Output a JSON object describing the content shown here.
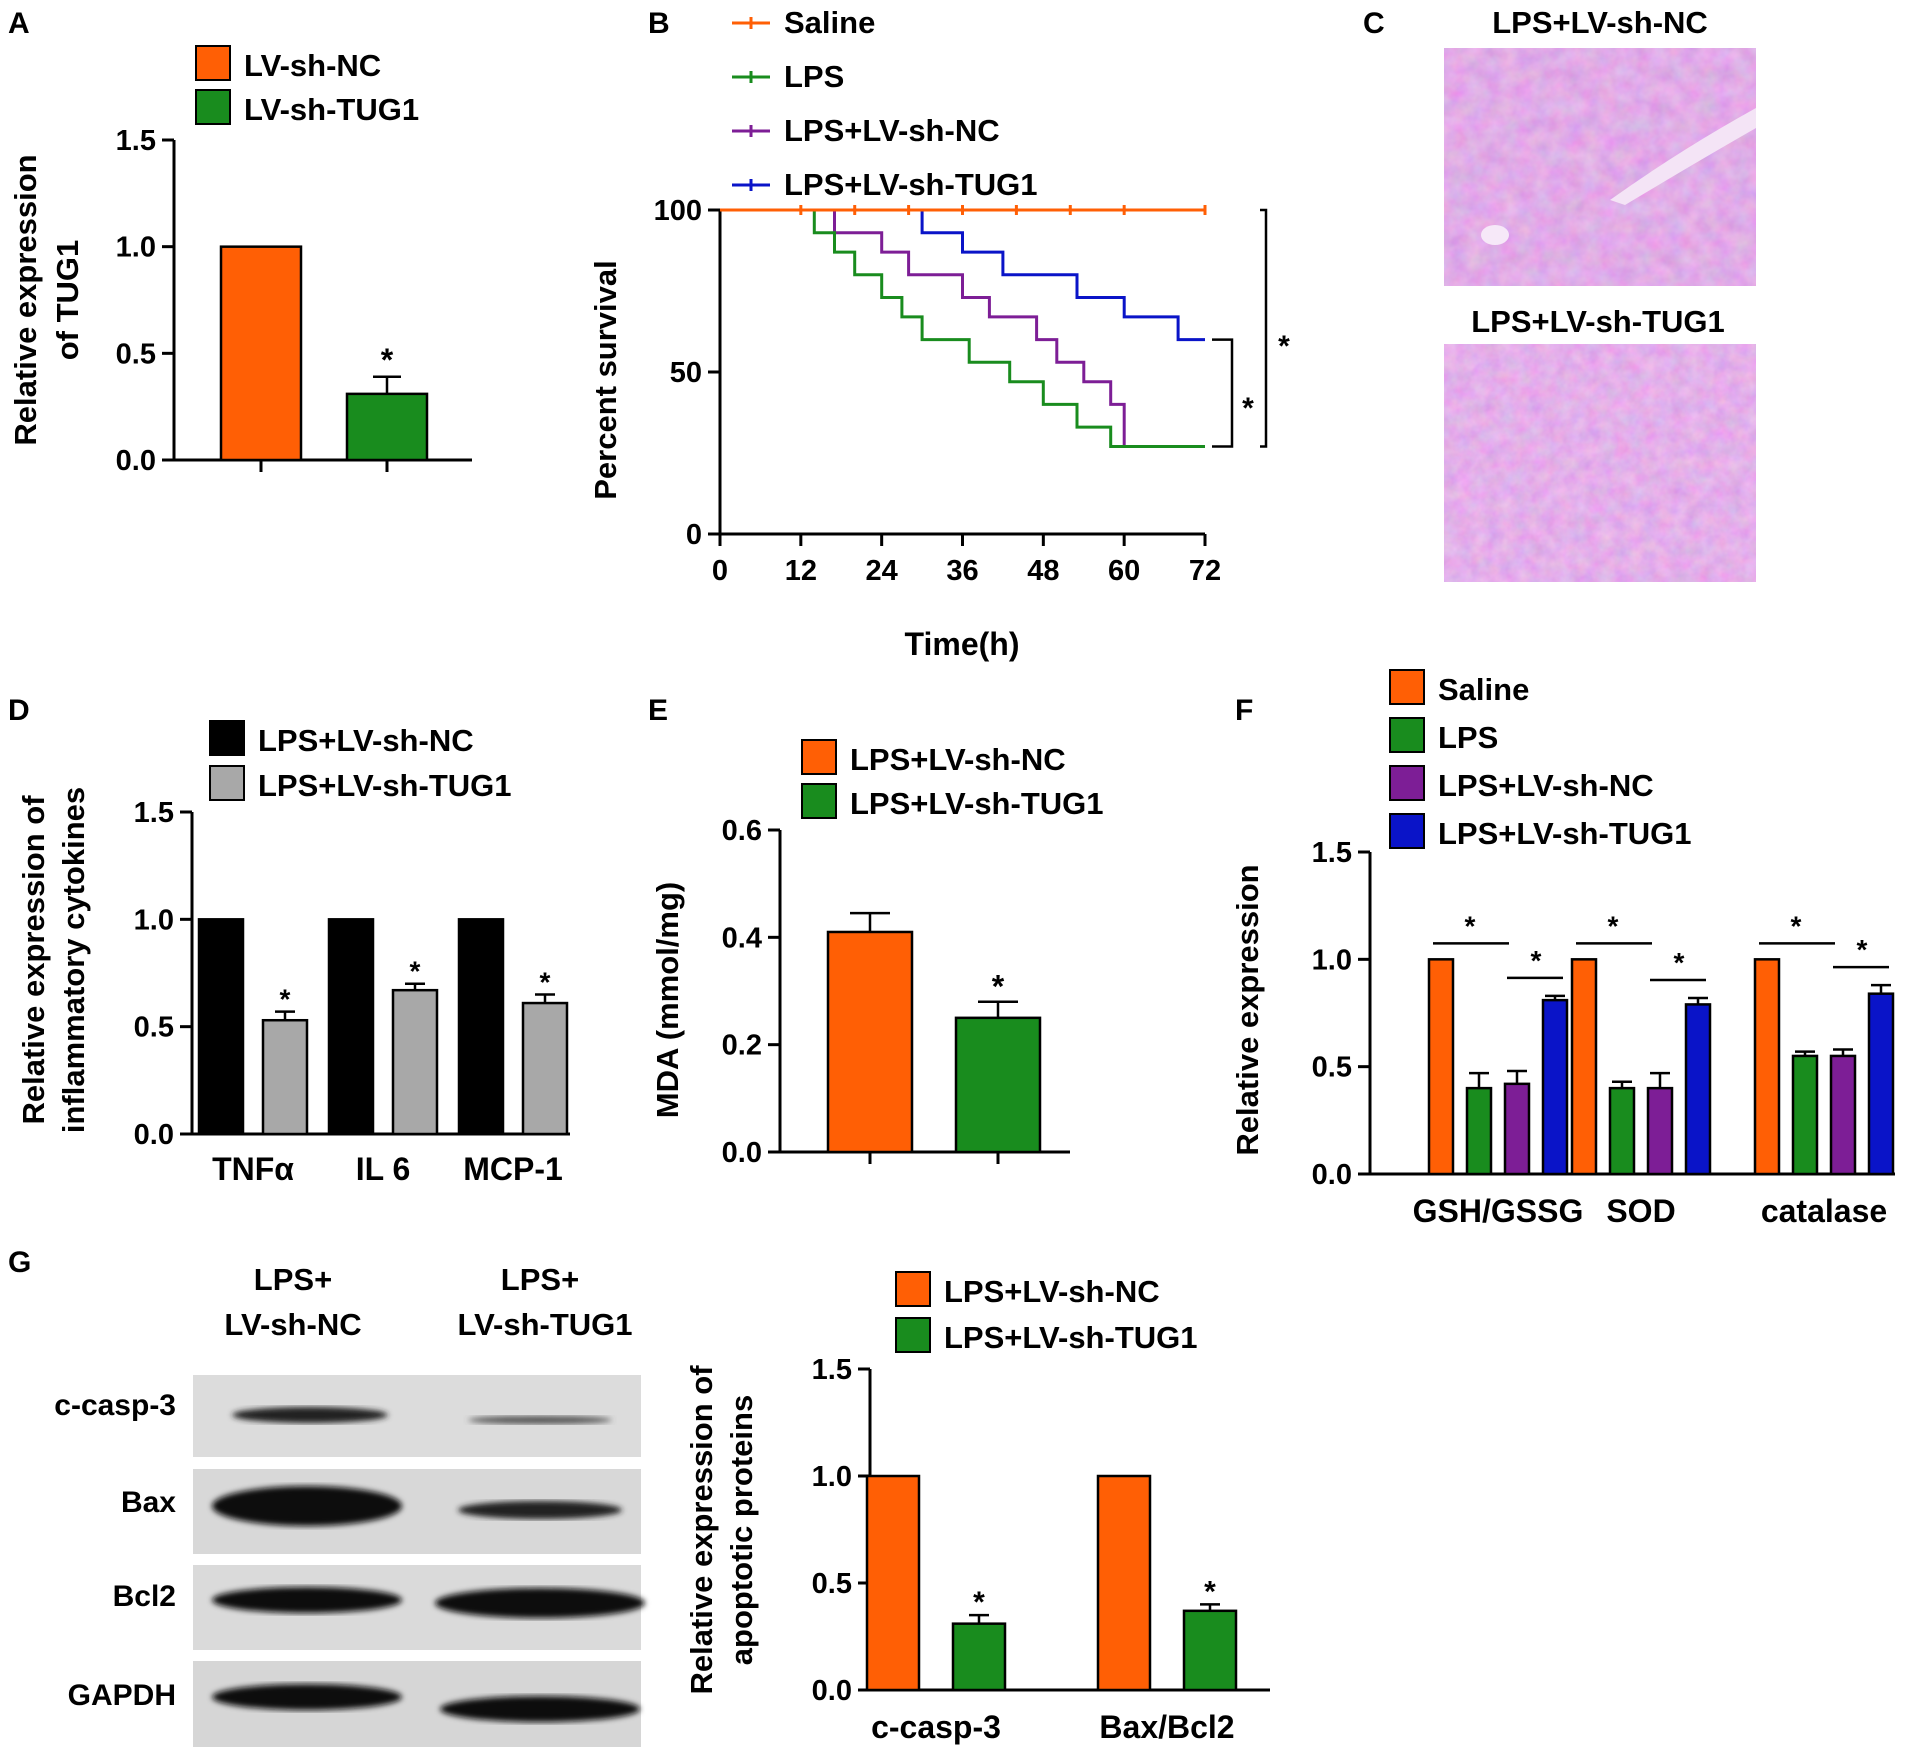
{
  "colors": {
    "orange": "#FF5F05",
    "green": "#198C1E",
    "purple": "#7D1E96",
    "blue": "#0A14C8",
    "black": "#000000",
    "gray": "#A8A8A8",
    "stain": "#C970D2"
  },
  "chart_data": [
    {
      "panel": "A",
      "type": "bar",
      "ylabel": "Relative expression of TUG1",
      "ylim": [
        0,
        1.5
      ],
      "yticks": [
        "0.0",
        "0.5",
        "1.0",
        "1.5"
      ],
      "legend": [
        "LV-sh-NC",
        "LV-sh-TUG1"
      ],
      "series": [
        {
          "name": "LV-sh-NC",
          "values": [
            1.0
          ],
          "errors": [
            0
          ],
          "stars": [
            ""
          ]
        },
        {
          "name": "LV-sh-TUG1",
          "values": [
            0.31
          ],
          "errors": [
            0.08
          ],
          "stars": [
            "*"
          ]
        }
      ]
    },
    {
      "panel": "B",
      "type": "line",
      "subtype": "kaplan-meier",
      "xlabel": "Time(h)",
      "ylabel": "Percent survival",
      "xlim": [
        0,
        72
      ],
      "ylim": [
        0,
        100
      ],
      "xticks": [
        "0",
        "12",
        "24",
        "36",
        "48",
        "60",
        "72"
      ],
      "yticks": [
        "0",
        "50",
        "100"
      ],
      "series": [
        {
          "name": "Saline",
          "points": [
            [
              0,
              100
            ],
            [
              72,
              100
            ]
          ]
        },
        {
          "name": "LPS",
          "points": [
            [
              0,
              100
            ],
            [
              14,
              100
            ],
            [
              14,
              93
            ],
            [
              17,
              93
            ],
            [
              17,
              87
            ],
            [
              20,
              87
            ],
            [
              20,
              80
            ],
            [
              24,
              80
            ],
            [
              24,
              73
            ],
            [
              27,
              73
            ],
            [
              27,
              67
            ],
            [
              30,
              67
            ],
            [
              30,
              60
            ],
            [
              37,
              60
            ],
            [
              37,
              53
            ],
            [
              43,
              53
            ],
            [
              43,
              47
            ],
            [
              48,
              47
            ],
            [
              48,
              40
            ],
            [
              53,
              40
            ],
            [
              53,
              33
            ],
            [
              58,
              33
            ],
            [
              58,
              27
            ],
            [
              72,
              27
            ]
          ]
        },
        {
          "name": "LPS+LV-sh-NC",
          "points": [
            [
              0,
              100
            ],
            [
              17,
              100
            ],
            [
              17,
              93
            ],
            [
              24,
              93
            ],
            [
              24,
              87
            ],
            [
              28,
              87
            ],
            [
              28,
              80
            ],
            [
              36,
              80
            ],
            [
              36,
              73
            ],
            [
              40,
              73
            ],
            [
              40,
              67
            ],
            [
              47,
              67
            ],
            [
              47,
              60
            ],
            [
              50,
              60
            ],
            [
              50,
              53
            ],
            [
              54,
              53
            ],
            [
              54,
              47
            ],
            [
              58,
              47
            ],
            [
              58,
              40
            ],
            [
              60,
              40
            ],
            [
              60,
              27
            ],
            [
              72,
              27
            ]
          ]
        },
        {
          "name": "LPS+LV-sh-TUG1",
          "points": [
            [
              0,
              100
            ],
            [
              30,
              100
            ],
            [
              30,
              93
            ],
            [
              36,
              93
            ],
            [
              36,
              87
            ],
            [
              42,
              87
            ],
            [
              42,
              80
            ],
            [
              53,
              80
            ],
            [
              53,
              73
            ],
            [
              60,
              73
            ],
            [
              60,
              67
            ],
            [
              68,
              67
            ],
            [
              68,
              60
            ],
            [
              72,
              60
            ]
          ]
        }
      ],
      "annotations": [
        "*",
        "*"
      ]
    },
    {
      "panel": "D",
      "type": "bar",
      "ylabel": "Relative expression of inflammatory cytokines",
      "ylim": [
        0,
        1.5
      ],
      "yticks": [
        "0.0",
        "0.5",
        "1.0",
        "1.5"
      ],
      "categories": [
        "TNFα",
        "IL 6",
        "MCP-1"
      ],
      "series": [
        {
          "name": "LPS+LV-sh-NC",
          "values": [
            1.0,
            1.0,
            1.0
          ],
          "errors": [
            0,
            0,
            0
          ],
          "stars": [
            "",
            "",
            ""
          ]
        },
        {
          "name": "LPS+LV-sh-TUG1",
          "values": [
            0.53,
            0.67,
            0.61
          ],
          "errors": [
            0.04,
            0.03,
            0.04
          ],
          "stars": [
            "*",
            "*",
            "*"
          ]
        }
      ]
    },
    {
      "panel": "E",
      "type": "bar",
      "ylabel": "MDA (mmol/mg)",
      "ylim": [
        0,
        0.6
      ],
      "yticks": [
        "0.0",
        "0.2",
        "0.4",
        "0.6"
      ],
      "legend": [
        "LPS+LV-sh-NC",
        "LPS+LV-sh-TUG1"
      ],
      "series": [
        {
          "name": "LPS+LV-sh-NC",
          "values": [
            0.41
          ],
          "errors": [
            0.035
          ],
          "stars": [
            ""
          ]
        },
        {
          "name": "LPS+LV-sh-TUG1",
          "values": [
            0.25
          ],
          "errors": [
            0.03
          ],
          "stars": [
            "*"
          ]
        }
      ]
    },
    {
      "panel": "F",
      "type": "bar",
      "ylabel": "Relative expression",
      "ylim": [
        0,
        1.5
      ],
      "yticks": [
        "0.0",
        "0.5",
        "1.0",
        "1.5"
      ],
      "categories": [
        "GSH/GSSG",
        "SOD",
        "catalase"
      ],
      "series": [
        {
          "name": "Saline",
          "values": [
            1.0,
            1.0,
            1.0
          ],
          "errors": [
            0,
            0,
            0
          ]
        },
        {
          "name": "LPS",
          "values": [
            0.4,
            0.4,
            0.55
          ],
          "errors": [
            0.07,
            0.03,
            0.02
          ]
        },
        {
          "name": "LPS+LV-sh-NC",
          "values": [
            0.42,
            0.4,
            0.55
          ],
          "errors": [
            0.06,
            0.07,
            0.03
          ]
        },
        {
          "name": "LPS+LV-sh-TUG1",
          "values": [
            0.81,
            0.79,
            0.84
          ],
          "errors": [
            0.02,
            0.03,
            0.04
          ]
        }
      ],
      "brackets": [
        "*",
        "*",
        "*",
        "*",
        "*",
        "*"
      ]
    },
    {
      "panel": "G",
      "type": "bar",
      "ylabel": "Relative expression of apoptotic proteins",
      "ylim": [
        0,
        1.5
      ],
      "yticks": [
        "0.0",
        "0.5",
        "1.0",
        "1.5"
      ],
      "categories": [
        "c-casp-3",
        "Bax/Bcl2"
      ],
      "legend": [
        "LPS+LV-sh-NC",
        "LPS+LV-sh-TUG1"
      ],
      "series": [
        {
          "name": "LPS+LV-sh-NC",
          "values": [
            1.0,
            1.0
          ],
          "errors": [
            0,
            0
          ],
          "stars": [
            "",
            ""
          ]
        },
        {
          "name": "LPS+LV-sh-TUG1",
          "values": [
            0.31,
            0.37
          ],
          "errors": [
            0.04,
            0.03
          ],
          "stars": [
            "*",
            "*"
          ]
        }
      ]
    }
  ],
  "panel_c": {
    "label": "C",
    "top_title": "LPS+LV-sh-NC",
    "bottom_title": "LPS+LV-sh-TUG1"
  },
  "blot": {
    "col_headers": [
      {
        "line1": "LPS+",
        "line2": "LV-sh-NC"
      },
      {
        "line1": "LPS+",
        "line2": "LV-sh-TUG1"
      }
    ],
    "rows": [
      "c-casp-3",
      "Bax",
      "Bcl2",
      "GAPDH"
    ]
  },
  "panel_labels": {
    "A": "A",
    "B": "B",
    "D": "D",
    "E": "E",
    "F": "F",
    "G": "G"
  }
}
